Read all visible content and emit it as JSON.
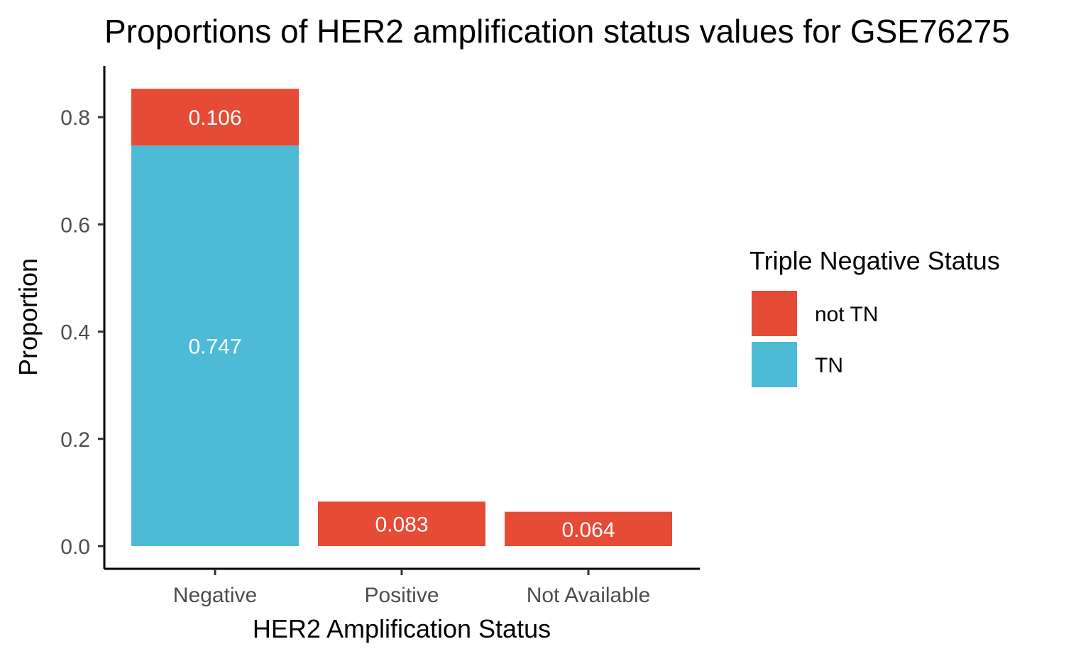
{
  "chart_data": {
    "type": "bar",
    "stacked": true,
    "title": "Proportions of HER2 amplification status values for GSE76275",
    "xlabel": "HER2 Amplification Status",
    "ylabel": "Proportion",
    "categories": [
      "Negative",
      "Positive",
      "Not Available"
    ],
    "ylim": [
      0,
      0.86
    ],
    "yticks": [
      0.0,
      0.2,
      0.4,
      0.6,
      0.8
    ],
    "ytick_labels": [
      "0.0",
      "0.2",
      "0.4",
      "0.6",
      "0.8"
    ],
    "series": [
      {
        "name": "TN",
        "color": "#4DBBD5",
        "values": [
          0.747,
          0,
          0
        ],
        "labels": [
          "0.747",
          "",
          ""
        ]
      },
      {
        "name": "not TN",
        "color": "#E64B35",
        "values": [
          0.106,
          0.083,
          0.064
        ],
        "labels": [
          "0.106",
          "0.083",
          "0.064"
        ]
      }
    ],
    "grid": false,
    "legend": {
      "title": "Triple Negative Status",
      "placement": "right",
      "entries": [
        {
          "label": "not TN",
          "color": "#E64B35"
        },
        {
          "label": "TN",
          "color": "#4DBBD5"
        }
      ]
    }
  }
}
